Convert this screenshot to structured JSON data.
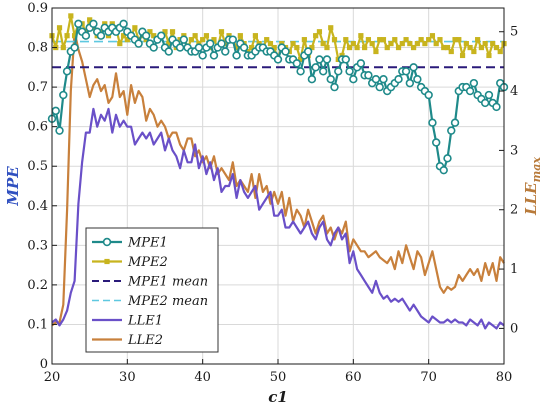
{
  "chart_data": {
    "type": "line",
    "title": "",
    "xlabel": "c1",
    "ylabel_left": "MPE",
    "ylabel_right": "LLE",
    "ylabel_right_sub": "max",
    "xlim": [
      20,
      80
    ],
    "ylim_left": [
      0,
      0.9
    ],
    "ylim_right": [
      -0.6,
      5.4
    ],
    "x_ticks": [
      20,
      30,
      40,
      50,
      60,
      70,
      80
    ],
    "y_ticks_left": [
      0,
      0.1,
      0.2,
      0.3,
      0.4,
      0.5,
      0.6,
      0.7,
      0.8,
      0.9
    ],
    "y_ticks_right": [
      0,
      1,
      2,
      3,
      4,
      5
    ],
    "x_tick_labels": [
      "20",
      "30",
      "40",
      "50",
      "60",
      "70",
      "80"
    ],
    "y_tick_labels_left": [
      "0",
      "0.1",
      "0.2",
      "0.3",
      "0.4",
      "0.5",
      "0.6",
      "0.7",
      "0.8",
      "0.9"
    ],
    "y_tick_labels_right": [
      "0",
      "1",
      "2",
      "3",
      "4",
      "5"
    ],
    "grid": true,
    "legend_position": "bottom-left",
    "colors": {
      "mpe1": "#1f8a8a",
      "mpe1_marker": "#1f8a8a",
      "mpe2": "#c8b41e",
      "mpe1_mean": "#2a1a7a",
      "mpe2_mean": "#5ec8e0",
      "lle1": "#6a50c8",
      "lle2": "#c8803c",
      "left_axis": "#3050c0",
      "right_axis": "#b87a3a"
    },
    "legend": [
      "MPE1",
      "MPE2",
      "MPE1 mean",
      "MPE2 mean",
      "LLE1",
      "LLE2"
    ],
    "series": [
      {
        "name": "MPE1",
        "axis": "left",
        "x": [
          20,
          20.5,
          21,
          21.5,
          22,
          22.5,
          23,
          23.5,
          24,
          24.5,
          25,
          25.5,
          26,
          26.5,
          27,
          27.5,
          28,
          28.5,
          29,
          29.5,
          30,
          30.5,
          31,
          31.5,
          32,
          32.5,
          33,
          33.5,
          34,
          34.5,
          35,
          35.5,
          36,
          36.5,
          37,
          37.5,
          38,
          38.5,
          39,
          39.5,
          40,
          40.5,
          41,
          41.5,
          42,
          42.5,
          43,
          43.5,
          44,
          44.5,
          45,
          45.5,
          46,
          46.5,
          47,
          47.5,
          48,
          48.5,
          49,
          49.5,
          50,
          50.5,
          51,
          51.5,
          52,
          52.5,
          53,
          53.5,
          54,
          54.5,
          55,
          55.5,
          56,
          56.5,
          57,
          57.5,
          58,
          58.5,
          59,
          59.5,
          60,
          60.5,
          61,
          61.5,
          62,
          62.5,
          63,
          63.5,
          64,
          64.5,
          65,
          65.5,
          66,
          66.5,
          67,
          67.5,
          68,
          68.5,
          69,
          69.5,
          70,
          70.5,
          71,
          71.5,
          72,
          72.5,
          73,
          73.5,
          74,
          74.5,
          75,
          75.5,
          76,
          76.5,
          77,
          77.5,
          78,
          78.5,
          79,
          79.5,
          80
        ],
        "y": [
          0.62,
          0.64,
          0.59,
          0.68,
          0.74,
          0.79,
          0.8,
          0.86,
          0.84,
          0.83,
          0.85,
          0.86,
          0.84,
          0.83,
          0.85,
          0.84,
          0.85,
          0.84,
          0.85,
          0.86,
          0.84,
          0.83,
          0.82,
          0.81,
          0.84,
          0.83,
          0.81,
          0.8,
          0.82,
          0.83,
          0.8,
          0.79,
          0.82,
          0.81,
          0.8,
          0.82,
          0.8,
          0.79,
          0.79,
          0.8,
          0.78,
          0.8,
          0.81,
          0.78,
          0.8,
          0.81,
          0.79,
          0.82,
          0.82,
          0.78,
          0.81,
          0.8,
          0.78,
          0.78,
          0.79,
          0.8,
          0.8,
          0.79,
          0.79,
          0.78,
          0.77,
          0.8,
          0.79,
          0.77,
          0.77,
          0.76,
          0.74,
          0.78,
          0.79,
          0.72,
          0.75,
          0.77,
          0.74,
          0.77,
          0.72,
          0.7,
          0.74,
          0.77,
          0.77,
          0.74,
          0.72,
          0.75,
          0.76,
          0.73,
          0.73,
          0.71,
          0.72,
          0.7,
          0.72,
          0.69,
          0.7,
          0.71,
          0.72,
          0.74,
          0.74,
          0.71,
          0.75,
          0.72,
          0.7,
          0.69,
          0.68,
          0.61,
          0.56,
          0.5,
          0.49,
          0.52,
          0.59,
          0.61,
          0.69,
          0.7,
          0.7,
          0.69,
          0.71,
          0.68,
          0.67,
          0.66,
          0.68,
          0.66,
          0.65,
          0.71,
          0.7
        ]
      },
      {
        "name": "MPE2",
        "axis": "left",
        "x": [
          20,
          20.5,
          21,
          21.5,
          22,
          22.5,
          23,
          23.5,
          24,
          24.5,
          25,
          25.5,
          26,
          26.5,
          27,
          27.5,
          28,
          28.5,
          29,
          29.5,
          30,
          30.5,
          31,
          31.5,
          32,
          32.5,
          33,
          33.5,
          34,
          34.5,
          35,
          35.5,
          36,
          36.5,
          37,
          37.5,
          38,
          38.5,
          39,
          39.5,
          40,
          40.5,
          41,
          41.5,
          42,
          42.5,
          43,
          43.5,
          44,
          44.5,
          45,
          45.5,
          46,
          46.5,
          47,
          47.5,
          48,
          48.5,
          49,
          49.5,
          50,
          50.5,
          51,
          51.5,
          52,
          52.5,
          53,
          53.5,
          54,
          54.5,
          55,
          55.5,
          56,
          56.5,
          57,
          57.5,
          58,
          58.5,
          59,
          59.5,
          60,
          60.5,
          61,
          61.5,
          62,
          62.5,
          63,
          63.5,
          64,
          64.5,
          65,
          65.5,
          66,
          66.5,
          67,
          67.5,
          68,
          68.5,
          69,
          69.5,
          70,
          70.5,
          71,
          71.5,
          72,
          72.5,
          73,
          73.5,
          74,
          74.5,
          75,
          75.5,
          76,
          76.5,
          77,
          77.5,
          78,
          78.5,
          79,
          79.5,
          80
        ],
        "y": [
          0.83,
          0.8,
          0.85,
          0.8,
          0.83,
          0.88,
          0.83,
          0.86,
          0.86,
          0.84,
          0.87,
          0.85,
          0.83,
          0.84,
          0.86,
          0.83,
          0.86,
          0.85,
          0.81,
          0.83,
          0.82,
          0.83,
          0.85,
          0.82,
          0.83,
          0.82,
          0.84,
          0.83,
          0.82,
          0.83,
          0.84,
          0.81,
          0.84,
          0.8,
          0.82,
          0.83,
          0.8,
          0.82,
          0.83,
          0.81,
          0.82,
          0.83,
          0.8,
          0.82,
          0.8,
          0.84,
          0.81,
          0.83,
          0.82,
          0.8,
          0.83,
          0.81,
          0.79,
          0.8,
          0.83,
          0.81,
          0.8,
          0.82,
          0.81,
          0.8,
          0.77,
          0.81,
          0.8,
          0.79,
          0.81,
          0.8,
          0.77,
          0.82,
          0.78,
          0.8,
          0.83,
          0.84,
          0.81,
          0.8,
          0.85,
          0.82,
          0.77,
          0.78,
          0.82,
          0.8,
          0.81,
          0.8,
          0.83,
          0.8,
          0.82,
          0.81,
          0.79,
          0.82,
          0.82,
          0.8,
          0.81,
          0.82,
          0.8,
          0.81,
          0.82,
          0.81,
          0.8,
          0.81,
          0.82,
          0.81,
          0.82,
          0.83,
          0.81,
          0.82,
          0.8,
          0.8,
          0.79,
          0.82,
          0.82,
          0.78,
          0.81,
          0.8,
          0.79,
          0.82,
          0.8,
          0.81,
          0.78,
          0.81,
          0.8,
          0.79,
          0.81
        ]
      },
      {
        "name": "MPE1 mean",
        "axis": "left",
        "x": [
          20,
          80
        ],
        "y": [
          0.75,
          0.75
        ]
      },
      {
        "name": "MPE2 mean",
        "axis": "left",
        "x": [
          20,
          80
        ],
        "y": [
          0.815,
          0.815
        ]
      },
      {
        "name": "LLE1",
        "axis": "right",
        "x": [
          20,
          20.5,
          21,
          21.5,
          22,
          22.5,
          23,
          23.5,
          24,
          24.5,
          25,
          25.5,
          26,
          26.5,
          27,
          27.5,
          28,
          28.5,
          29,
          29.5,
          30,
          30.5,
          31,
          31.5,
          32,
          32.5,
          33,
          33.5,
          34,
          34.5,
          35,
          35.5,
          36,
          36.5,
          37,
          37.5,
          38,
          38.5,
          39,
          39.5,
          40,
          40.5,
          41,
          41.5,
          42,
          42.5,
          43,
          43.5,
          44,
          44.5,
          45,
          45.5,
          46,
          46.5,
          47,
          47.5,
          48,
          48.5,
          49,
          49.5,
          50,
          50.5,
          51,
          51.5,
          52,
          52.5,
          53,
          53.5,
          54,
          54.5,
          55,
          55.5,
          56,
          56.5,
          57,
          57.5,
          58,
          58.5,
          59,
          59.5,
          60,
          60.5,
          61,
          61.5,
          62,
          62.5,
          63,
          63.5,
          64,
          64.5,
          65,
          65.5,
          66,
          66.5,
          67,
          67.5,
          68,
          68.5,
          69,
          69.5,
          70,
          70.5,
          71,
          71.5,
          72,
          72.5,
          73,
          73.5,
          74,
          74.5,
          75,
          75.5,
          76,
          76.5,
          77,
          77.5,
          78,
          78.5,
          79,
          79.5,
          80
        ],
        "y": [
          0.1,
          0.15,
          0.05,
          0.15,
          0.3,
          0.6,
          0.8,
          2.1,
          2.8,
          3.3,
          3.3,
          3.7,
          3.4,
          3.6,
          3.5,
          3.7,
          3.3,
          3.6,
          3.4,
          3.5,
          3.4,
          3.4,
          3.1,
          3.2,
          3.3,
          3.2,
          3.3,
          3.1,
          3.2,
          3.3,
          3.0,
          3.2,
          3.0,
          2.9,
          2.7,
          3.0,
          2.8,
          2.8,
          3.1,
          2.7,
          2.9,
          2.6,
          2.8,
          2.5,
          2.7,
          2.3,
          2.4,
          2.4,
          2.6,
          2.2,
          2.5,
          2.3,
          2.2,
          2.3,
          2.4,
          2.0,
          2.1,
          2.2,
          2.3,
          1.9,
          1.9,
          2.0,
          1.7,
          1.7,
          1.8,
          1.7,
          1.6,
          1.7,
          1.8,
          1.6,
          1.5,
          1.7,
          1.8,
          1.5,
          1.4,
          1.6,
          1.7,
          1.5,
          1.6,
          1.1,
          1.3,
          1.0,
          0.9,
          0.8,
          0.7,
          0.6,
          0.8,
          0.6,
          0.5,
          0.55,
          0.45,
          0.5,
          0.45,
          0.5,
          0.4,
          0.3,
          0.4,
          0.3,
          0.2,
          0.15,
          0.1,
          0.2,
          0.15,
          0.1,
          0.1,
          0.15,
          0.1,
          0.15,
          0.1,
          0.1,
          0.05,
          0.15,
          0.1,
          0.05,
          0.15,
          0.0,
          0.1,
          0.05,
          0.0,
          0.1,
          0.05
        ]
      },
      {
        "name": "LLE2",
        "axis": "right",
        "x": [
          20,
          20.5,
          21,
          21.5,
          22,
          22.5,
          23,
          23.5,
          24,
          24.5,
          25,
          25.5,
          26,
          26.5,
          27,
          27.5,
          28,
          28.5,
          29,
          29.5,
          30,
          30.5,
          31,
          31.5,
          32,
          32.5,
          33,
          33.5,
          34,
          34.5,
          35,
          35.5,
          36,
          36.5,
          37,
          37.5,
          38,
          38.5,
          39,
          39.5,
          40,
          40.5,
          41,
          41.5,
          42,
          42.5,
          43,
          43.5,
          44,
          44.5,
          45,
          45.5,
          46,
          46.5,
          47,
          47.5,
          48,
          48.5,
          49,
          49.5,
          50,
          50.5,
          51,
          51.5,
          52,
          52.5,
          53,
          53.5,
          54,
          54.5,
          55,
          55.5,
          56,
          56.5,
          57,
          57.5,
          58,
          58.5,
          59,
          59.5,
          60,
          60.5,
          61,
          61.5,
          62,
          62.5,
          63,
          63.5,
          64,
          64.5,
          65,
          65.5,
          66,
          66.5,
          67,
          67.5,
          68,
          68.5,
          69,
          69.5,
          70,
          70.5,
          71,
          71.5,
          72,
          72.5,
          73,
          73.5,
          74,
          74.5,
          75,
          75.5,
          76,
          76.5,
          77,
          77.5,
          78,
          78.5,
          79,
          79.5,
          80
        ],
        "y": [
          0.05,
          0.1,
          0.1,
          0.4,
          2.0,
          4.0,
          5.0,
          4.7,
          4.5,
          4.2,
          3.9,
          4.1,
          4.2,
          4.0,
          4.1,
          3.8,
          3.9,
          4.3,
          3.9,
          4.0,
          3.6,
          4.1,
          3.8,
          4.0,
          3.9,
          3.5,
          3.7,
          3.6,
          3.4,
          3.5,
          3.4,
          3.2,
          3.3,
          3.3,
          3.1,
          3.0,
          3.2,
          3.2,
          2.9,
          3.0,
          2.8,
          2.9,
          2.7,
          2.9,
          2.6,
          2.7,
          2.6,
          2.5,
          2.8,
          2.4,
          2.5,
          2.4,
          2.3,
          2.6,
          2.2,
          2.6,
          2.3,
          2.4,
          2.1,
          2.3,
          2.1,
          2.3,
          1.9,
          2.2,
          1.8,
          2.0,
          1.9,
          1.7,
          2.0,
          1.8,
          1.6,
          1.8,
          1.9,
          1.6,
          1.7,
          1.5,
          1.7,
          1.6,
          1.8,
          1.3,
          1.5,
          1.4,
          1.3,
          1.3,
          1.2,
          1.25,
          1.3,
          1.2,
          1.15,
          1.1,
          1.2,
          1.0,
          1.3,
          1.1,
          1.4,
          1.2,
          1.0,
          1.3,
          1.2,
          0.9,
          1.1,
          1.3,
          1.0,
          0.7,
          0.6,
          0.7,
          0.65,
          0.7,
          0.9,
          0.8,
          0.9,
          1.0,
          0.9,
          1.0,
          0.8,
          1.1,
          0.9,
          1.1,
          0.8,
          1.2,
          1.1
        ]
      }
    ]
  }
}
